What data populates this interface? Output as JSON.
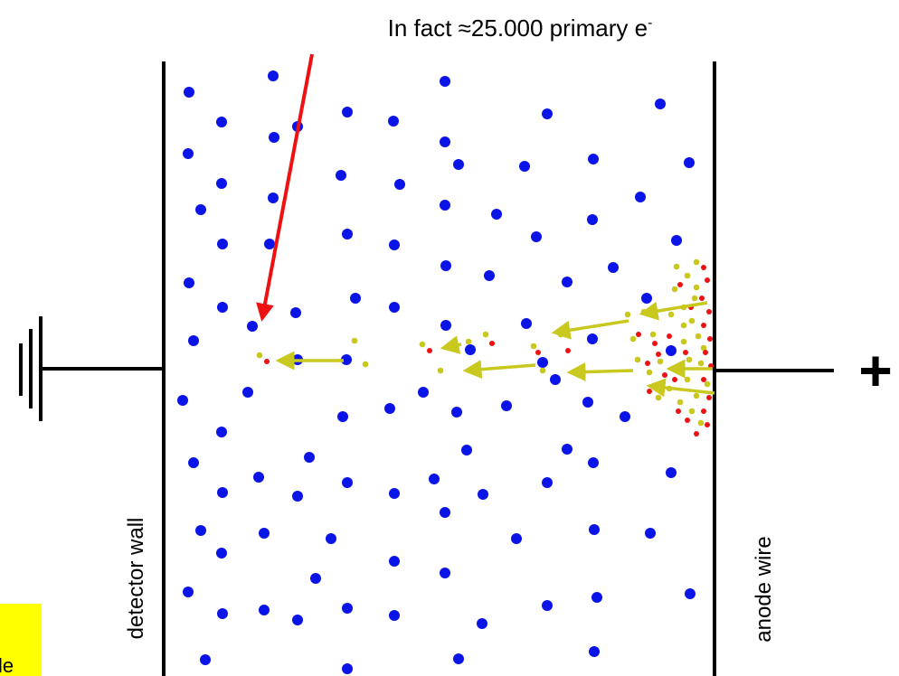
{
  "title": {
    "text": "In fact ≈25.000 primary e",
    "sup": "-"
  },
  "labels": {
    "wall": "detector wall",
    "wire": "anode wire",
    "plus": "+",
    "corner": "le"
  }
}
